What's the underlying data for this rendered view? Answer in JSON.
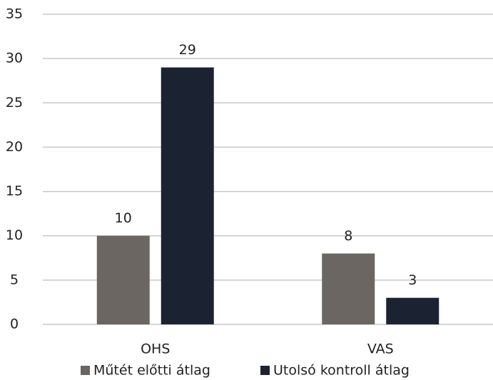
{
  "chart_data": {
    "type": "bar",
    "categories": [
      "OHS",
      "VAS"
    ],
    "series": [
      {
        "name": "Műtét előtti átlag",
        "color": "#6b6661",
        "values": [
          10,
          8
        ]
      },
      {
        "name": "Utolsó kontroll átlag",
        "color": "#1b2333",
        "values": [
          29,
          3
        ]
      }
    ],
    "ylim": [
      0,
      35
    ],
    "yticks": [
      0,
      5,
      10,
      15,
      20,
      25,
      30,
      35
    ],
    "grid": true,
    "legend": "bottom"
  }
}
